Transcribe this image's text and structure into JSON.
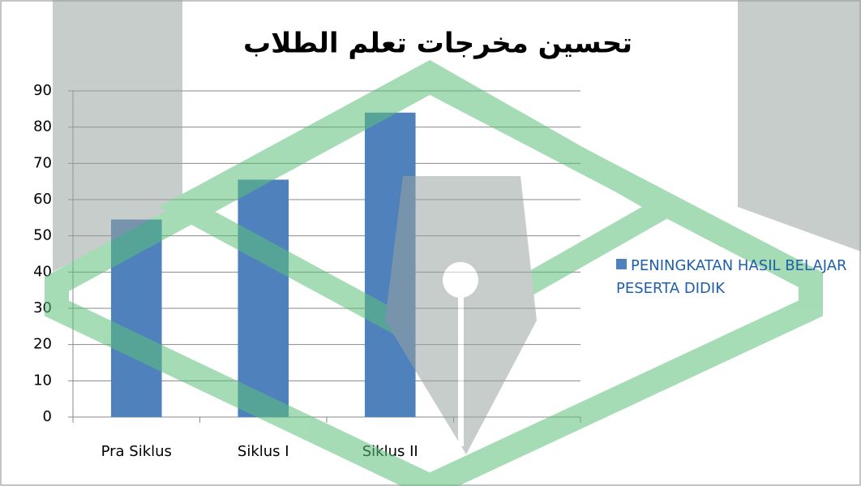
{
  "chart_data": {
    "type": "bar",
    "title": "تحسين مخرجات تعلم الطلاب",
    "categories": [
      "Pra Siklus",
      "Siklus I",
      "Siklus II",
      null
    ],
    "series": [
      {
        "name": "PENINGKATAN HASIL BELAJAR PESERTA DIDIK",
        "color": "#4f81bd",
        "values": [
          54.5,
          65.5,
          84,
          null
        ]
      }
    ],
    "ylim": [
      0,
      90
    ],
    "yticks": [
      0,
      10,
      20,
      30,
      40,
      50,
      60,
      70,
      80,
      90
    ],
    "grid": true,
    "legend": "right"
  }
}
